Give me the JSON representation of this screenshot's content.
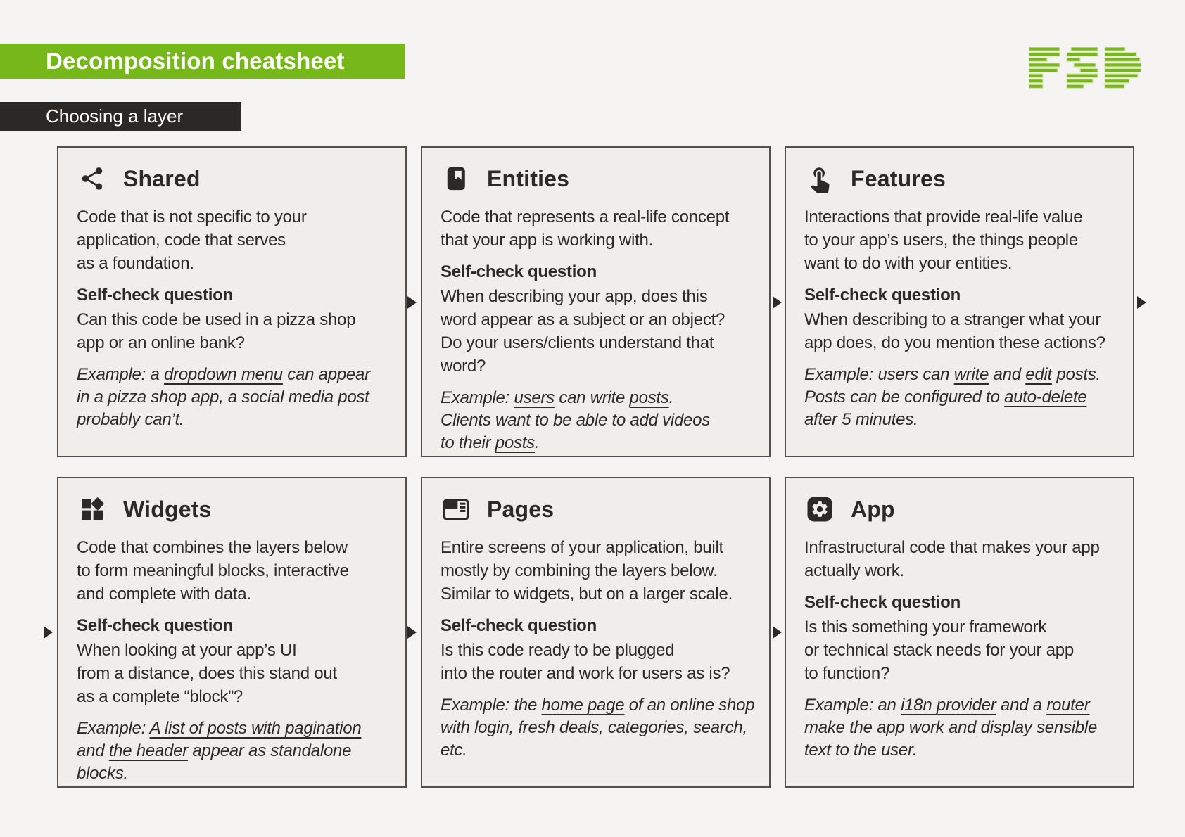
{
  "colors": {
    "accent_green": "#76b719",
    "dark": "#2b2826",
    "page_bg": "#f5f4f3",
    "card_bg": "#f0edeb",
    "card_border": "#55504d",
    "text": "#2d2926"
  },
  "header": {
    "title": "Decomposition cheatsheet",
    "subtitle": "Choosing a layer",
    "logo_text": "FSD"
  },
  "cards": [
    {
      "id": "shared",
      "icon": "share-icon",
      "title": "Shared",
      "description": "Code that is not specific to your\napplication, code that serves\nas a foundation.",
      "self_check_label": "Self-check question",
      "question": "Can this code be used in a pizza shop\napp or an online bank?",
      "example": [
        {
          "text": "Example: a "
        },
        {
          "text": "dropdown menu",
          "underline": true
        },
        {
          "text": " can appear\nin a pizza shop app, a social media post\nprobably can’t."
        }
      ]
    },
    {
      "id": "entities",
      "icon": "book-bookmark-icon",
      "title": "Entities",
      "description": "Code that represents a real-life concept\nthat your app is working with.",
      "self_check_label": "Self-check question",
      "question": "When describing your app, does this\nword appear as a subject or an object?\nDo your users/clients understand that\nword?",
      "example": [
        {
          "text": "Example: "
        },
        {
          "text": "users",
          "underline": true
        },
        {
          "text": " can write "
        },
        {
          "text": "posts",
          "underline": true
        },
        {
          "text": ".\nClients want to be able to add videos\nto their "
        },
        {
          "text": "posts",
          "underline": true
        },
        {
          "text": "."
        }
      ]
    },
    {
      "id": "features",
      "icon": "touch-icon",
      "title": "Features",
      "description": "Interactions that provide real-life value\nto your app’s users, the things people\nwant to do with your entities.",
      "self_check_label": "Self-check question",
      "question": "When describing to a stranger what your\napp does, do you mention these actions?",
      "example": [
        {
          "text": "Example: users can "
        },
        {
          "text": "write",
          "underline": true
        },
        {
          "text": " and "
        },
        {
          "text": "edit",
          "underline": true
        },
        {
          "text": " posts.\nPosts can be configured to "
        },
        {
          "text": "auto-delete",
          "underline": true
        },
        {
          "text": "\nafter 5 minutes."
        }
      ]
    },
    {
      "id": "widgets",
      "icon": "widgets-icon",
      "title": "Widgets",
      "description": "Code that combines the layers below\nto form meaningful blocks, interactive\nand complete with data.",
      "self_check_label": "Self-check question",
      "question": "When looking at your app’s UI\nfrom a distance, does this stand out\nas a complete “block”?",
      "example": [
        {
          "text": "Example: "
        },
        {
          "text": "A list of posts with pagination",
          "underline": true
        },
        {
          "text": "\nand "
        },
        {
          "text": "the header",
          "underline": true
        },
        {
          "text": " appear as standalone\nblocks."
        }
      ]
    },
    {
      "id": "pages",
      "icon": "page-window-icon",
      "title": "Pages",
      "description": "Entire screens of your application, built\nmostly by combining the layers below.\nSimilar to widgets, but on a larger scale.",
      "self_check_label": "Self-check question",
      "question": "Is this code ready to be plugged\ninto the router and work for users as is?",
      "example": [
        {
          "text": "Example: the "
        },
        {
          "text": "home page",
          "underline": true
        },
        {
          "text": " of an online shop\nwith login, fresh deals, categories, search,\netc."
        }
      ]
    },
    {
      "id": "app",
      "icon": "gear-icon",
      "title": "App",
      "description": "Infrastructural code that makes your app\nactually work.",
      "self_check_label": "Self-check question",
      "question": "Is this something your framework\nor technical stack needs for your app\nto function?",
      "example": [
        {
          "text": "Example: an "
        },
        {
          "text": "i18n provider",
          "underline": true
        },
        {
          "text": " and a "
        },
        {
          "text": "router",
          "underline": true
        },
        {
          "text": "\nmake the app work and display sensible\ntext to the user."
        }
      ]
    }
  ]
}
